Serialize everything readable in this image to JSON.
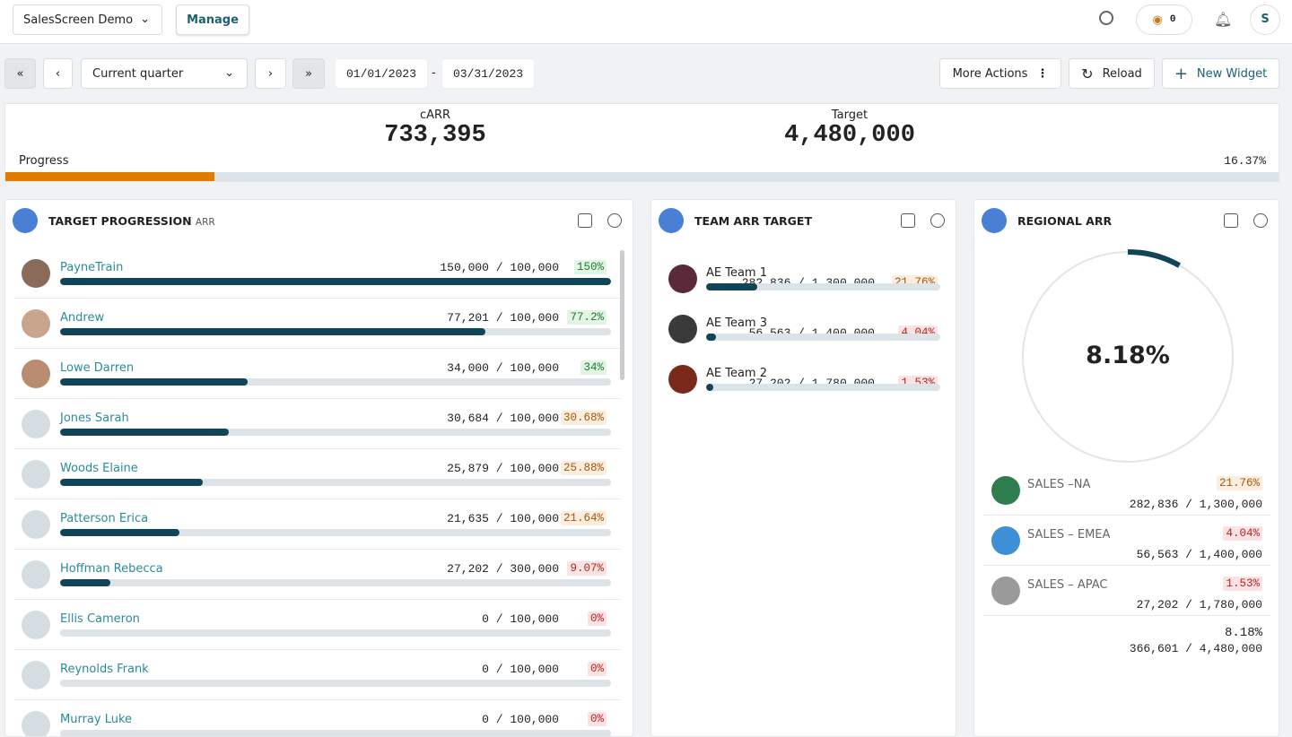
{
  "header": {
    "workspace": "SalesScreen Demo",
    "manage": "Manage",
    "credits": "0"
  },
  "toolbar": {
    "period": "Current quarter",
    "start_date": "01/01/2023",
    "separator": "-",
    "end_date": "03/31/2023",
    "more_actions": "More Actions",
    "reload": "Reload",
    "new_widget": "New Widget"
  },
  "summary": {
    "carr_label": "cARR",
    "carr": "733,395",
    "target_label": "Target",
    "target": "4,480,000",
    "progress_label": "Progress",
    "progress": {
      "value": 16.37,
      "label": "16.37%"
    }
  },
  "target_progression": {
    "title": "TARGET PROGRESSION",
    "subtitle": "ARR",
    "rows": [
      {
        "name": "PayneTrain",
        "amount": "150,000 / 100,000",
        "percent": {
          "value": 150,
          "label": "150%"
        }
      },
      {
        "name": "Andrew",
        "amount": "77,201 / 100,000",
        "percent": {
          "value": 77.2,
          "label": "77.2%"
        }
      },
      {
        "name": "Lowe Darren",
        "amount": "34,000 / 100,000",
        "percent": {
          "value": 34,
          "label": "34%"
        }
      },
      {
        "name": "Jones Sarah",
        "amount": "30,684 / 100,000",
        "percent": {
          "value": 30.68,
          "label": "30.68%"
        }
      },
      {
        "name": "Woods Elaine",
        "amount": "25,879 / 100,000",
        "percent": {
          "value": 25.88,
          "label": "25.88%"
        }
      },
      {
        "name": "Patterson Erica",
        "amount": "21,635 / 100,000",
        "percent": {
          "value": 21.64,
          "label": "21.64%"
        }
      },
      {
        "name": "Hoffman Rebecca",
        "amount": "27,202 / 300,000",
        "percent": {
          "value": 9.07,
          "label": "9.07%"
        }
      },
      {
        "name": "Ellis Cameron",
        "amount": "0 / 100,000",
        "percent": {
          "value": 0,
          "label": "0%"
        }
      },
      {
        "name": "Reynolds Frank",
        "amount": "0 / 100,000",
        "percent": {
          "value": 0,
          "label": "0%"
        }
      },
      {
        "name": "Murray Luke",
        "amount": "0 / 100,000",
        "percent": {
          "value": 0,
          "label": "0%"
        }
      }
    ]
  },
  "team_arr_target": {
    "title": "TEAM ARR TARGET",
    "rows": [
      {
        "name": "AE Team 1",
        "amount": "282,836 / 1,300,000",
        "percent": {
          "value": 21.76,
          "label": "21.76%"
        }
      },
      {
        "name": "AE Team 3",
        "amount": "56,563 / 1,400,000",
        "percent": {
          "value": 4.04,
          "label": "4.04%"
        }
      },
      {
        "name": "AE Team 2",
        "amount": "27,202 / 1,780,000",
        "percent": {
          "value": 1.53,
          "label": "1.53%"
        }
      }
    ]
  },
  "regional_arr": {
    "title": "REGIONAL ARR",
    "total_percent": {
      "value": 8.18,
      "label": "8.18%"
    },
    "rows": [
      {
        "name": "SALES –NA",
        "amount": "282,836 / 1,300,000",
        "percent": {
          "value": 21.76,
          "label": "21.76%"
        }
      },
      {
        "name": "SALES – EMEA",
        "amount": "56,563 / 1,400,000",
        "percent": {
          "value": 4.04,
          "label": "4.04%"
        }
      },
      {
        "name": "SALES – APAC",
        "amount": "27,202 / 1,780,000",
        "percent": {
          "value": 1.53,
          "label": "1.53%"
        }
      }
    ],
    "total_amount": "366,601 / 4,480,000"
  }
}
